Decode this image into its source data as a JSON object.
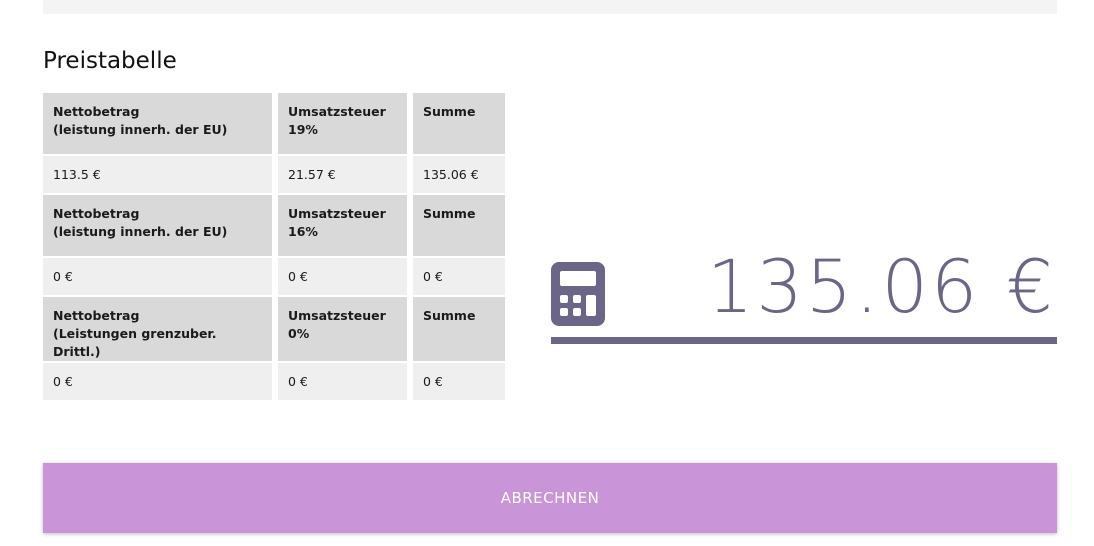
{
  "theme": {
    "accent": "#6b6588",
    "button_purple": "#c994d8",
    "header_gray": "#d9d9d9",
    "row_gray": "#efefef",
    "topbar_gray": "#f4f4f4"
  },
  "page": {
    "title": "Preistabelle"
  },
  "price_table": {
    "sections": [
      {
        "header": [
          {
            "title": "Nettobetrag",
            "subtitle": "(leistung innerh. der EU)"
          },
          {
            "title": "Umsatzsteuer 19%",
            "subtitle": ""
          },
          {
            "title": "Summe",
            "subtitle": ""
          }
        ],
        "values": [
          "113.5 €",
          "21.57 €",
          "135.06 €"
        ]
      },
      {
        "header": [
          {
            "title": "Nettobetrag",
            "subtitle": "(leistung innerh. der EU)"
          },
          {
            "title": "Umsatzsteuer 16%",
            "subtitle": ""
          },
          {
            "title": "Summe",
            "subtitle": ""
          }
        ],
        "values": [
          "0 €",
          "0 €",
          "0 €"
        ]
      },
      {
        "header": [
          {
            "title": "Nettobetrag",
            "subtitle": "(Leistungen grenzuber. Drittl.)"
          },
          {
            "title": "Umsatzsteuer 0%",
            "subtitle": ""
          },
          {
            "title": "Summe",
            "subtitle": ""
          }
        ],
        "values": [
          "0 €",
          "0 €",
          "0 €"
        ]
      }
    ]
  },
  "summary": {
    "total": "135.06 €",
    "icon": "calculator-icon"
  },
  "action": {
    "label": "ABRECHNEN"
  }
}
